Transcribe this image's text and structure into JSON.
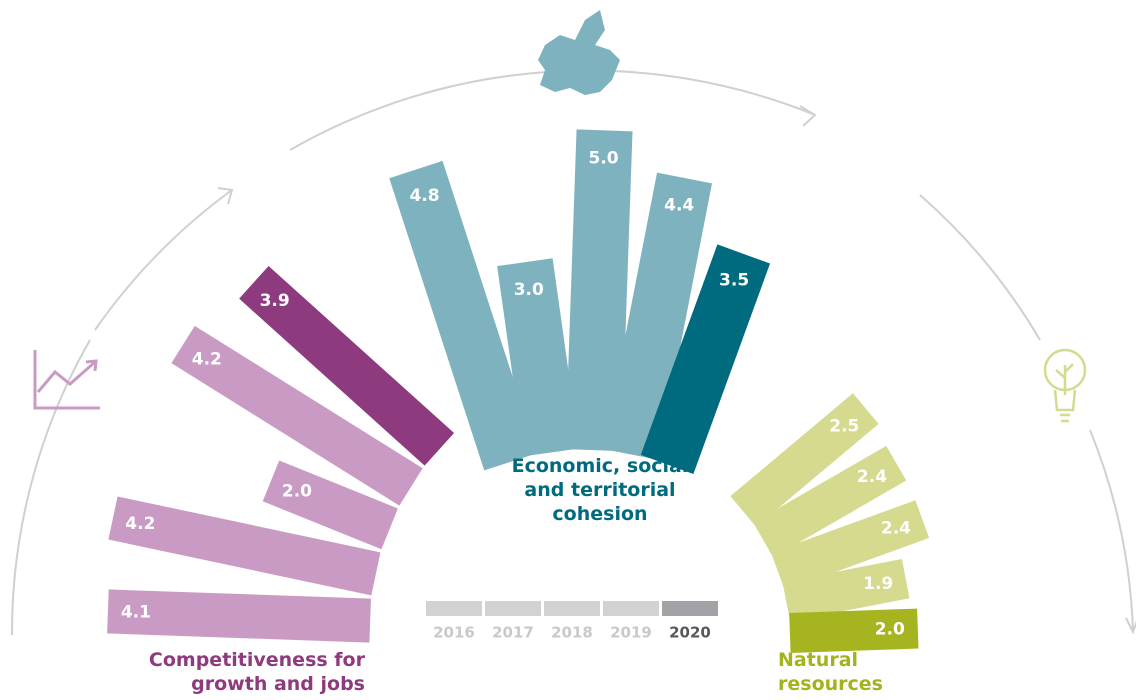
{
  "chart_data": {
    "type": "radial_bar",
    "categories": [
      "2016",
      "2017",
      "2018",
      "2019",
      "2020"
    ],
    "legend_colors": [
      "#d2d2d2",
      "#d2d2d2",
      "#d2d2d2",
      "#d2d2d2",
      "#a3a3a7"
    ],
    "legend_text_colors": [
      "#c9c9c9",
      "#c9c9c9",
      "#c9c9c9",
      "#c9c9c9",
      "#58585a"
    ],
    "series": [
      {
        "name": "Competitiveness for growth and jobs",
        "color": "#8e3a7e",
        "colors": [
          "#c99bc4",
          "#c99bc4",
          "#c99bc4",
          "#c99bc4",
          "#8e3a7e"
        ],
        "values": [
          4.1,
          4.2,
          2.0,
          4.2,
          3.9
        ],
        "value_labels": [
          "4.1",
          "4.2",
          "2.0",
          "4.2",
          "3.9"
        ]
      },
      {
        "name": "Economic, social and territorial cohesion",
        "color": "#006b7f",
        "colors": [
          "#7fb2bf",
          "#7fb2bf",
          "#7fb2bf",
          "#7fb2bf",
          "#006b7f"
        ],
        "values": [
          4.8,
          3.0,
          5.0,
          4.4,
          3.5
        ],
        "value_labels": [
          "4.8",
          "3.0",
          "5.0",
          "4.4",
          "3.5"
        ]
      },
      {
        "name": "Natural resources",
        "color": "#a3b31c",
        "colors": [
          "#d5da8f",
          "#d5da8f",
          "#d5da8f",
          "#d5da8f",
          "#a6b51f"
        ],
        "values": [
          2.5,
          2.4,
          2.4,
          1.9,
          2.0
        ],
        "value_labels": [
          "2.5",
          "2.4",
          "2.4",
          "1.9",
          "2.0"
        ]
      }
    ]
  }
}
